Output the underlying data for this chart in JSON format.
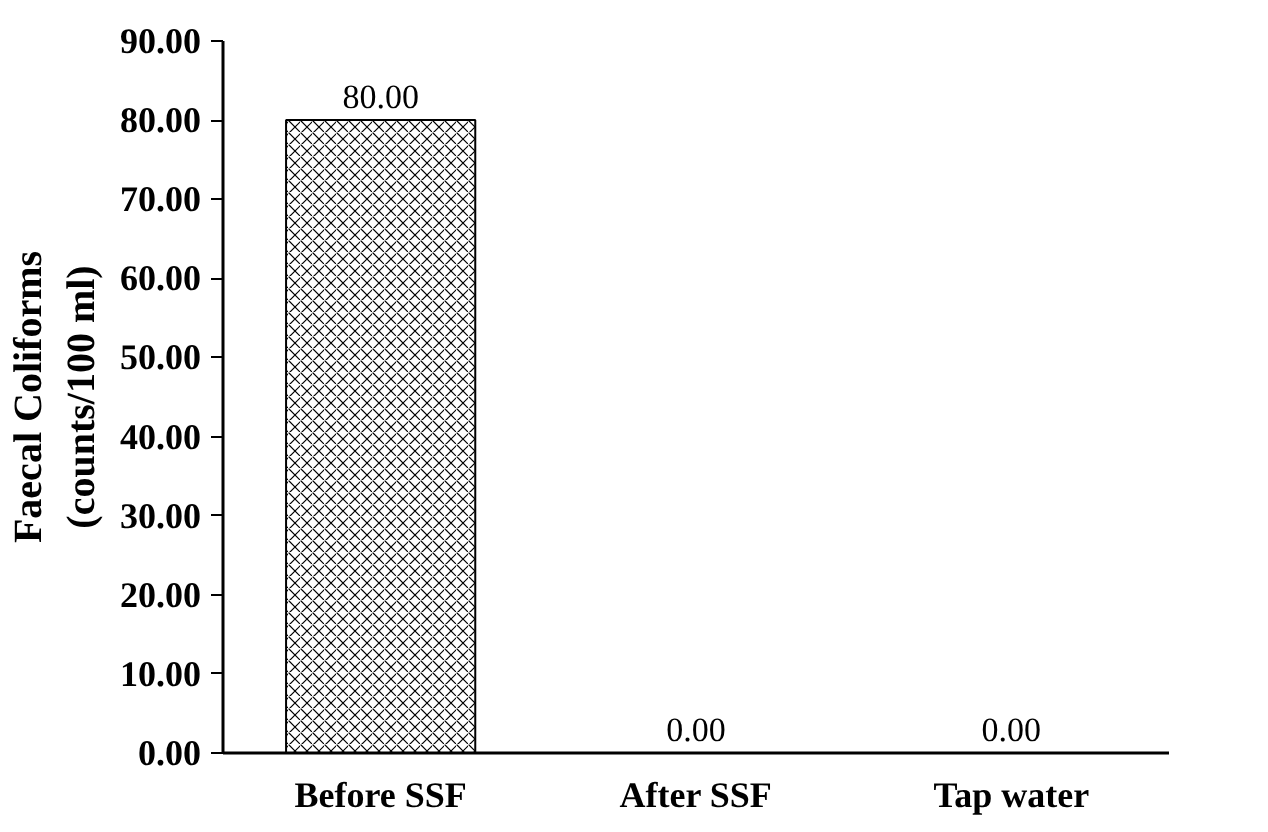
{
  "chart_data": {
    "type": "bar",
    "ylabel": "Faecal Coliforms\n(counts/100 ml)",
    "categories": [
      "Before SSF",
      "After SSF",
      "Tap water"
    ],
    "values": [
      80,
      0,
      0
    ],
    "value_labels": [
      "80.00",
      "0.00",
      "0.00"
    ],
    "color": "#000000",
    "ylim": [
      0,
      90
    ],
    "yticks": [
      {
        "value": 0,
        "label": "0.00"
      },
      {
        "value": 10,
        "label": "10.00"
      },
      {
        "value": 20,
        "label": "20.00"
      },
      {
        "value": 30,
        "label": "30.00"
      },
      {
        "value": 40,
        "label": "40.00"
      },
      {
        "value": 50,
        "label": "50.00"
      },
      {
        "value": 60,
        "label": "60.00"
      },
      {
        "value": 70,
        "label": "70.00"
      },
      {
        "value": 80,
        "label": "80.00"
      },
      {
        "value": 90,
        "label": "90.00"
      }
    ],
    "grid": false
  }
}
